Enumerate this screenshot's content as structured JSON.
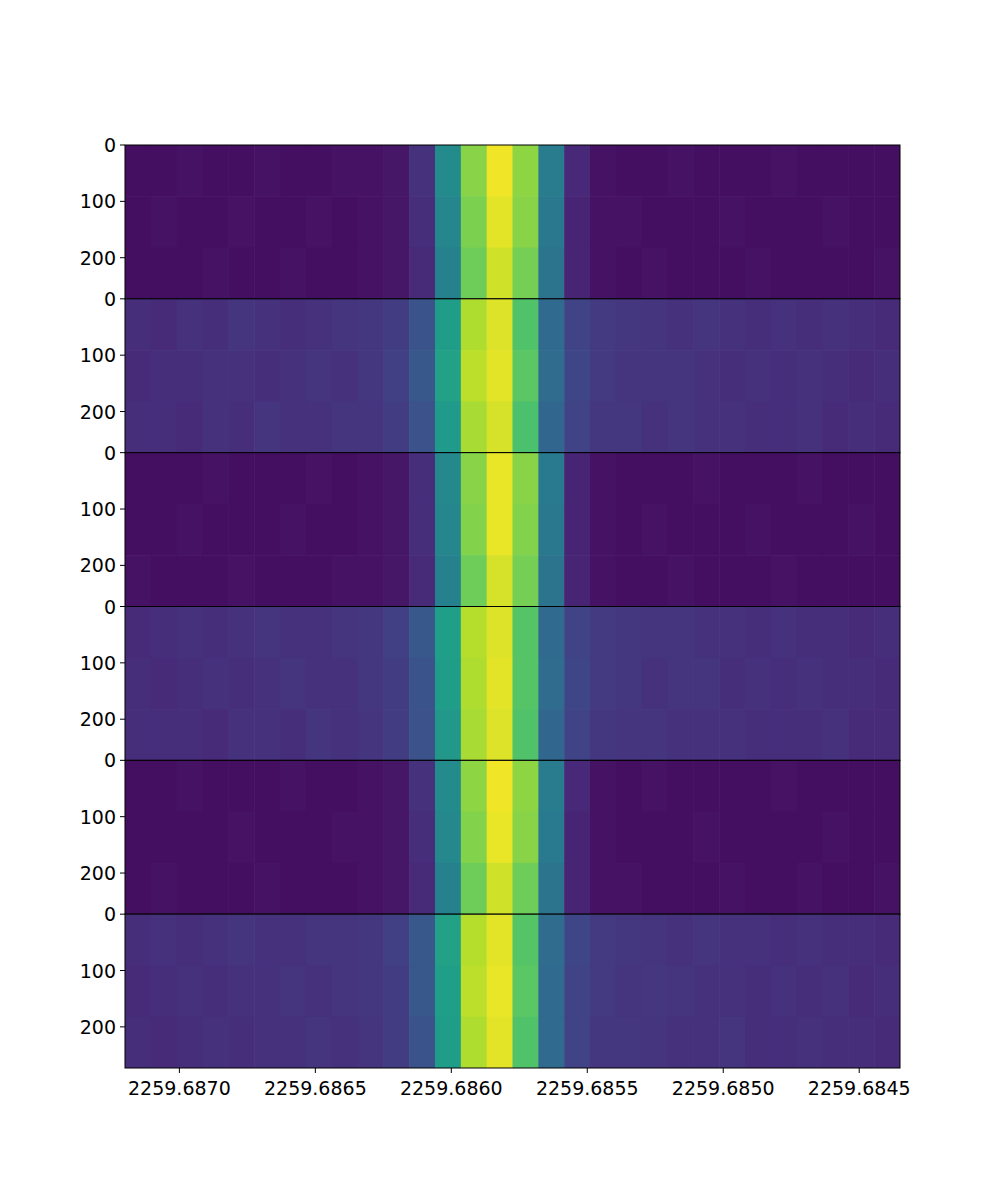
{
  "chart_data": {
    "type": "heatmap",
    "xlim": [
      2259.6872,
      2259.68435
    ],
    "ylim": [
      273,
      0
    ],
    "xticks": [
      {
        "value": 2259.687,
        "label": "2259.6870"
      },
      2259.6865,
      {
        "value": 2259.686,
        "label": "2259.6860"
      },
      2259.6855,
      {
        "value": 2259.685,
        "label": "2259.6850"
      },
      2259.6845
    ],
    "yticks": [
      0,
      100,
      200
    ],
    "tick_labels": true,
    "color_range": [
      0,
      1
    ],
    "x_bins": [
      2259.6872,
      2259.687105,
      2259.68701,
      2259.686915,
      2259.68682,
      2259.686725,
      2259.68663,
      2259.686535,
      2259.68644,
      2259.686345,
      2259.68625,
      2259.686155,
      2259.68606,
      2259.685965,
      2259.68587,
      2259.685775,
      2259.68568,
      2259.685585,
      2259.68549,
      2259.685395,
      2259.6853,
      2259.685205,
      2259.68511,
      2259.685015,
      2259.68492,
      2259.684825,
      2259.68473,
      2259.684635,
      2259.68454,
      2259.684445,
      2259.68435
    ],
    "y_bins": [
      0,
      91,
      182,
      273
    ],
    "panels": [
      {
        "cells": [
          [
            0.04,
            0.04,
            0.05,
            0.04,
            0.04,
            0.05,
            0.04,
            0.04,
            0.05,
            0.05,
            0.06,
            0.14,
            0.48,
            0.82,
            0.98,
            0.83,
            0.42,
            0.11,
            0.05,
            0.04,
            0.04,
            0.05,
            0.04,
            0.04,
            0.04,
            0.05,
            0.04,
            0.04,
            0.04,
            0.04
          ],
          [
            0.04,
            0.05,
            0.04,
            0.04,
            0.05,
            0.04,
            0.04,
            0.05,
            0.04,
            0.05,
            0.06,
            0.13,
            0.46,
            0.8,
            0.96,
            0.82,
            0.4,
            0.1,
            0.05,
            0.05,
            0.04,
            0.04,
            0.04,
            0.05,
            0.04,
            0.04,
            0.04,
            0.05,
            0.04,
            0.04
          ],
          [
            0.04,
            0.04,
            0.04,
            0.05,
            0.04,
            0.04,
            0.05,
            0.04,
            0.04,
            0.05,
            0.06,
            0.12,
            0.44,
            0.78,
            0.93,
            0.79,
            0.38,
            0.1,
            0.05,
            0.04,
            0.05,
            0.04,
            0.04,
            0.04,
            0.05,
            0.04,
            0.04,
            0.04,
            0.04,
            0.05
          ]
        ]
      },
      {
        "cells": [
          [
            0.13,
            0.12,
            0.14,
            0.13,
            0.15,
            0.14,
            0.13,
            0.14,
            0.15,
            0.16,
            0.18,
            0.26,
            0.55,
            0.88,
            0.95,
            0.72,
            0.34,
            0.2,
            0.17,
            0.16,
            0.15,
            0.14,
            0.15,
            0.14,
            0.13,
            0.14,
            0.13,
            0.14,
            0.13,
            0.12
          ],
          [
            0.12,
            0.13,
            0.13,
            0.14,
            0.14,
            0.13,
            0.14,
            0.15,
            0.14,
            0.16,
            0.19,
            0.27,
            0.57,
            0.9,
            0.96,
            0.74,
            0.35,
            0.21,
            0.17,
            0.15,
            0.15,
            0.15,
            0.14,
            0.13,
            0.14,
            0.13,
            0.14,
            0.13,
            0.12,
            0.13
          ],
          [
            0.13,
            0.13,
            0.12,
            0.14,
            0.13,
            0.15,
            0.14,
            0.14,
            0.15,
            0.15,
            0.18,
            0.25,
            0.54,
            0.87,
            0.94,
            0.71,
            0.33,
            0.2,
            0.16,
            0.16,
            0.14,
            0.15,
            0.14,
            0.14,
            0.13,
            0.13,
            0.14,
            0.12,
            0.13,
            0.12
          ]
        ]
      },
      {
        "cells": [
          [
            0.04,
            0.04,
            0.04,
            0.05,
            0.04,
            0.04,
            0.04,
            0.05,
            0.04,
            0.05,
            0.06,
            0.13,
            0.47,
            0.82,
            0.97,
            0.82,
            0.41,
            0.1,
            0.05,
            0.04,
            0.04,
            0.04,
            0.05,
            0.04,
            0.04,
            0.04,
            0.05,
            0.04,
            0.04,
            0.04
          ],
          [
            0.04,
            0.04,
            0.05,
            0.04,
            0.04,
            0.04,
            0.05,
            0.04,
            0.04,
            0.05,
            0.06,
            0.13,
            0.46,
            0.81,
            0.97,
            0.81,
            0.4,
            0.1,
            0.05,
            0.04,
            0.05,
            0.04,
            0.04,
            0.04,
            0.05,
            0.04,
            0.04,
            0.04,
            0.05,
            0.04
          ],
          [
            0.05,
            0.04,
            0.04,
            0.04,
            0.05,
            0.04,
            0.04,
            0.04,
            0.05,
            0.05,
            0.06,
            0.12,
            0.44,
            0.78,
            0.94,
            0.79,
            0.38,
            0.1,
            0.05,
            0.04,
            0.04,
            0.05,
            0.04,
            0.04,
            0.04,
            0.05,
            0.04,
            0.04,
            0.04,
            0.04
          ]
        ]
      },
      {
        "cells": [
          [
            0.12,
            0.13,
            0.14,
            0.13,
            0.14,
            0.15,
            0.14,
            0.14,
            0.15,
            0.16,
            0.19,
            0.27,
            0.56,
            0.89,
            0.95,
            0.73,
            0.34,
            0.2,
            0.17,
            0.16,
            0.15,
            0.15,
            0.14,
            0.14,
            0.13,
            0.14,
            0.13,
            0.13,
            0.12,
            0.13
          ],
          [
            0.13,
            0.12,
            0.13,
            0.14,
            0.13,
            0.14,
            0.15,
            0.14,
            0.14,
            0.16,
            0.18,
            0.26,
            0.55,
            0.88,
            0.96,
            0.73,
            0.35,
            0.21,
            0.17,
            0.16,
            0.14,
            0.15,
            0.15,
            0.13,
            0.14,
            0.13,
            0.14,
            0.13,
            0.13,
            0.12
          ],
          [
            0.13,
            0.13,
            0.13,
            0.12,
            0.14,
            0.14,
            0.13,
            0.15,
            0.14,
            0.15,
            0.18,
            0.25,
            0.53,
            0.87,
            0.95,
            0.72,
            0.33,
            0.2,
            0.16,
            0.15,
            0.15,
            0.14,
            0.14,
            0.14,
            0.13,
            0.13,
            0.13,
            0.14,
            0.12,
            0.12
          ]
        ]
      },
      {
        "cells": [
          [
            0.04,
            0.04,
            0.05,
            0.04,
            0.04,
            0.04,
            0.05,
            0.04,
            0.04,
            0.05,
            0.06,
            0.14,
            0.48,
            0.83,
            0.98,
            0.83,
            0.42,
            0.11,
            0.05,
            0.04,
            0.05,
            0.04,
            0.04,
            0.04,
            0.04,
            0.05,
            0.04,
            0.04,
            0.04,
            0.04
          ],
          [
            0.04,
            0.04,
            0.04,
            0.04,
            0.05,
            0.04,
            0.04,
            0.04,
            0.05,
            0.05,
            0.06,
            0.13,
            0.47,
            0.81,
            0.97,
            0.82,
            0.41,
            0.1,
            0.05,
            0.04,
            0.04,
            0.04,
            0.05,
            0.04,
            0.04,
            0.04,
            0.04,
            0.05,
            0.04,
            0.04
          ],
          [
            0.04,
            0.05,
            0.04,
            0.04,
            0.04,
            0.05,
            0.04,
            0.04,
            0.04,
            0.05,
            0.06,
            0.12,
            0.44,
            0.78,
            0.93,
            0.78,
            0.38,
            0.1,
            0.05,
            0.05,
            0.04,
            0.04,
            0.04,
            0.05,
            0.04,
            0.04,
            0.05,
            0.04,
            0.04,
            0.05
          ]
        ]
      },
      {
        "cells": [
          [
            0.13,
            0.14,
            0.13,
            0.14,
            0.15,
            0.14,
            0.14,
            0.15,
            0.15,
            0.16,
            0.19,
            0.27,
            0.57,
            0.89,
            0.96,
            0.73,
            0.35,
            0.21,
            0.17,
            0.16,
            0.15,
            0.14,
            0.15,
            0.14,
            0.14,
            0.13,
            0.14,
            0.13,
            0.13,
            0.12
          ],
          [
            0.12,
            0.13,
            0.14,
            0.13,
            0.14,
            0.14,
            0.15,
            0.14,
            0.15,
            0.16,
            0.18,
            0.27,
            0.56,
            0.9,
            0.97,
            0.74,
            0.34,
            0.2,
            0.17,
            0.15,
            0.16,
            0.15,
            0.14,
            0.14,
            0.13,
            0.14,
            0.13,
            0.14,
            0.12,
            0.13
          ],
          [
            0.13,
            0.12,
            0.13,
            0.14,
            0.13,
            0.14,
            0.14,
            0.15,
            0.14,
            0.15,
            0.18,
            0.26,
            0.55,
            0.88,
            0.96,
            0.72,
            0.34,
            0.2,
            0.16,
            0.16,
            0.15,
            0.14,
            0.14,
            0.15,
            0.13,
            0.13,
            0.14,
            0.13,
            0.13,
            0.12
          ]
        ]
      }
    ]
  }
}
